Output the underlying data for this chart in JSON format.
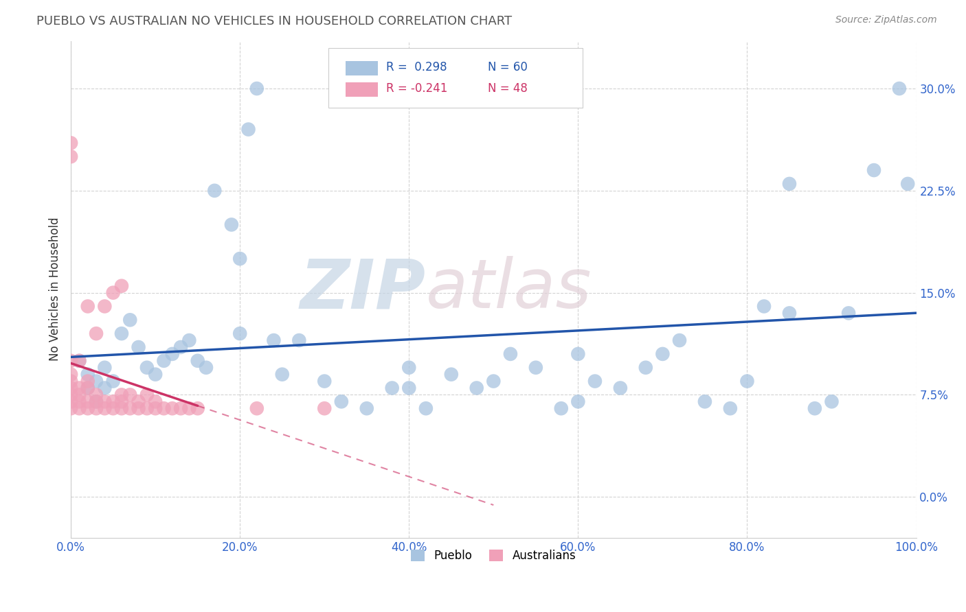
{
  "title": "PUEBLO VS AUSTRALIAN NO VEHICLES IN HOUSEHOLD CORRELATION CHART",
  "source": "Source: ZipAtlas.com",
  "ylabel": "No Vehicles in Household",
  "xlim": [
    0,
    1.0
  ],
  "ylim": [
    -0.03,
    0.335
  ],
  "x_ticks": [
    0.0,
    0.2,
    0.4,
    0.6,
    0.8,
    1.0
  ],
  "x_tick_labels": [
    "0.0%",
    "20.0%",
    "40.0%",
    "60.0%",
    "80.0%",
    "100.0%"
  ],
  "y_ticks": [
    0.0,
    0.075,
    0.15,
    0.225,
    0.3
  ],
  "y_tick_labels": [
    "0.0%",
    "7.5%",
    "15.0%",
    "22.5%",
    "30.0%"
  ],
  "pueblo_R": 0.298,
  "pueblo_N": 60,
  "australian_R": -0.241,
  "australian_N": 48,
  "pueblo_color": "#a8c4e0",
  "australian_color": "#f0a0b8",
  "pueblo_line_color": "#2255aa",
  "australian_line_color": "#cc3366",
  "pueblo_x": [
    0.01,
    0.02,
    0.02,
    0.03,
    0.03,
    0.04,
    0.04,
    0.05,
    0.06,
    0.07,
    0.08,
    0.09,
    0.1,
    0.11,
    0.12,
    0.13,
    0.14,
    0.15,
    0.16,
    0.17,
    0.19,
    0.2,
    0.21,
    0.22,
    0.24,
    0.25,
    0.27,
    0.3,
    0.32,
    0.35,
    0.38,
    0.4,
    0.42,
    0.45,
    0.48,
    0.5,
    0.52,
    0.55,
    0.58,
    0.6,
    0.62,
    0.65,
    0.68,
    0.7,
    0.72,
    0.75,
    0.78,
    0.8,
    0.82,
    0.85,
    0.88,
    0.9,
    0.92,
    0.95,
    0.98,
    0.99,
    0.85,
    0.6,
    0.4,
    0.2
  ],
  "pueblo_y": [
    0.1,
    0.09,
    0.08,
    0.085,
    0.07,
    0.095,
    0.08,
    0.085,
    0.12,
    0.13,
    0.11,
    0.095,
    0.09,
    0.1,
    0.105,
    0.11,
    0.115,
    0.1,
    0.095,
    0.225,
    0.2,
    0.175,
    0.27,
    0.3,
    0.115,
    0.09,
    0.115,
    0.085,
    0.07,
    0.065,
    0.08,
    0.095,
    0.065,
    0.09,
    0.08,
    0.085,
    0.105,
    0.095,
    0.065,
    0.07,
    0.085,
    0.08,
    0.095,
    0.105,
    0.115,
    0.07,
    0.065,
    0.085,
    0.14,
    0.23,
    0.065,
    0.07,
    0.135,
    0.24,
    0.3,
    0.23,
    0.135,
    0.105,
    0.08,
    0.12
  ],
  "australian_x": [
    0.0,
    0.0,
    0.0,
    0.0,
    0.0,
    0.0,
    0.0,
    0.0,
    0.0,
    0.01,
    0.01,
    0.01,
    0.01,
    0.01,
    0.02,
    0.02,
    0.02,
    0.02,
    0.02,
    0.03,
    0.03,
    0.03,
    0.03,
    0.04,
    0.04,
    0.04,
    0.05,
    0.05,
    0.05,
    0.06,
    0.06,
    0.06,
    0.06,
    0.07,
    0.07,
    0.08,
    0.08,
    0.09,
    0.09,
    0.1,
    0.1,
    0.11,
    0.12,
    0.13,
    0.14,
    0.15,
    0.22,
    0.3
  ],
  "australian_y": [
    0.065,
    0.07,
    0.075,
    0.08,
    0.085,
    0.09,
    0.1,
    0.25,
    0.26,
    0.065,
    0.07,
    0.075,
    0.08,
    0.1,
    0.065,
    0.07,
    0.08,
    0.085,
    0.14,
    0.065,
    0.07,
    0.075,
    0.12,
    0.065,
    0.07,
    0.14,
    0.065,
    0.07,
    0.15,
    0.065,
    0.07,
    0.075,
    0.155,
    0.065,
    0.075,
    0.065,
    0.07,
    0.065,
    0.075,
    0.065,
    0.07,
    0.065,
    0.065,
    0.065,
    0.065,
    0.065,
    0.065,
    0.065
  ]
}
